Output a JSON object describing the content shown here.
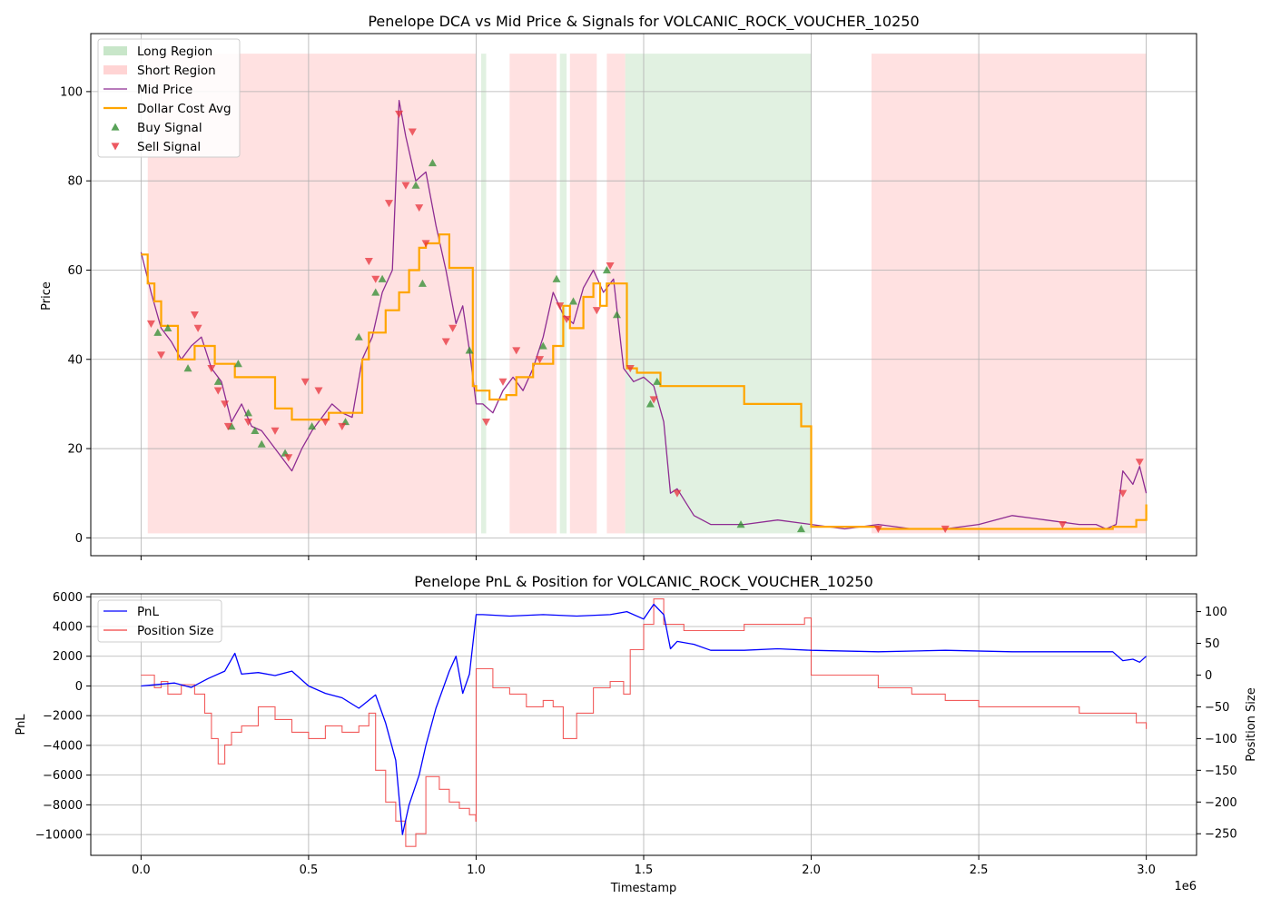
{
  "chart_data": [
    {
      "type": "line",
      "title": "Penelope DCA vs Mid Price & Signals for VOLCANIC_ROCK_VOUCHER_10250",
      "xlabel": "",
      "ylabel": "Price",
      "xlim": [
        -150000,
        3150000
      ],
      "ylim": [
        -4,
        113
      ],
      "x_ticks": [
        0,
        500000,
        1000000,
        1500000,
        2000000,
        2500000,
        3000000
      ],
      "y_ticks": [
        0,
        20,
        40,
        60,
        80,
        100
      ],
      "y_tick_labels": [
        "0",
        "20",
        "40",
        "60",
        "80",
        "100"
      ],
      "grid": true,
      "legend_position": "upper-left",
      "legend": [
        {
          "label": "Long Region",
          "kind": "patch",
          "color": "#c8e6c9"
        },
        {
          "label": "Short Region",
          "kind": "patch",
          "color": "#ffd4d4"
        },
        {
          "label": "Mid Price",
          "kind": "line",
          "color": "#8e2c92"
        },
        {
          "label": "Dollar Cost Avg",
          "kind": "line",
          "color": "#ffa500"
        },
        {
          "label": "Buy Signal",
          "kind": "triangle-up",
          "color": "#2e8b2e"
        },
        {
          "label": "Sell Signal",
          "kind": "triangle-down",
          "color": "#e8303a"
        }
      ],
      "regions": {
        "y_range": [
          1,
          108.5
        ],
        "short": [
          [
            20000,
            1000000
          ],
          [
            1100000,
            1240000
          ],
          [
            1280000,
            1360000
          ],
          [
            1390000,
            1445000
          ],
          [
            2180000,
            3000000
          ]
        ],
        "long": [
          [
            1015000,
            1030000
          ],
          [
            1250000,
            1270000
          ],
          [
            1445000,
            2000000
          ]
        ]
      },
      "mid_price": {
        "x": [
          0,
          30000,
          60000,
          90000,
          120000,
          150000,
          180000,
          210000,
          240000,
          270000,
          300000,
          330000,
          360000,
          390000,
          420000,
          450000,
          480000,
          510000,
          540000,
          570000,
          600000,
          630000,
          660000,
          690000,
          720000,
          750000,
          770000,
          790000,
          820000,
          850000,
          880000,
          910000,
          940000,
          960000,
          980000,
          1000000,
          1020000,
          1050000,
          1080000,
          1110000,
          1140000,
          1170000,
          1200000,
          1230000,
          1260000,
          1290000,
          1320000,
          1350000,
          1380000,
          1410000,
          1440000,
          1470000,
          1500000,
          1530000,
          1560000,
          1580000,
          1600000,
          1650000,
          1700000,
          1800000,
          1900000,
          2000000,
          2100000,
          2200000,
          2300000,
          2400000,
          2500000,
          2600000,
          2700000,
          2800000,
          2850000,
          2880000,
          2910000,
          2930000,
          2960000,
          2980000,
          3000000
        ],
        "y": [
          64,
          55,
          47,
          44,
          40,
          43,
          45,
          38,
          35,
          26,
          30,
          25,
          24,
          21,
          18,
          15,
          20,
          24,
          27,
          30,
          28,
          27,
          40,
          45,
          55,
          60,
          98,
          90,
          80,
          82,
          70,
          60,
          48,
          52,
          42,
          30,
          30,
          28,
          33,
          36,
          33,
          38,
          45,
          55,
          50,
          48,
          56,
          60,
          55,
          58,
          38,
          35,
          36,
          34,
          26,
          10,
          11,
          5,
          3,
          3,
          4,
          3,
          2,
          3,
          2,
          2,
          3,
          5,
          4,
          3,
          3,
          2,
          3,
          15,
          12,
          16,
          10
        ]
      },
      "dollar_cost_avg": {
        "x": [
          0,
          20000,
          40000,
          60000,
          110000,
          160000,
          220000,
          280000,
          400000,
          450000,
          560000,
          660000,
          680000,
          730000,
          770000,
          800000,
          830000,
          850000,
          890000,
          920000,
          990000,
          1000000,
          1040000,
          1090000,
          1120000,
          1170000,
          1230000,
          1260000,
          1280000,
          1320000,
          1350000,
          1370000,
          1390000,
          1450000,
          1480000,
          1550000,
          1800000,
          1970000,
          2000000,
          2200000,
          2900000,
          2970000,
          3000000
        ],
        "y": [
          63.5,
          57,
          53,
          47.5,
          40,
          43,
          39,
          36,
          29,
          26.5,
          28,
          40,
          46,
          51,
          55,
          60,
          65,
          66,
          68,
          60.5,
          34,
          33,
          31,
          32,
          36,
          39,
          43,
          52,
          47,
          54,
          57,
          52,
          57,
          38,
          37,
          34,
          30,
          25,
          2.5,
          2,
          2.5,
          4,
          7.5
        ]
      },
      "buy_signals": {
        "x": [
          50000,
          80000,
          140000,
          230000,
          270000,
          290000,
          320000,
          340000,
          360000,
          430000,
          510000,
          610000,
          650000,
          700000,
          720000,
          820000,
          840000,
          870000,
          980000,
          1200000,
          1240000,
          1290000,
          1390000,
          1420000,
          1520000,
          1540000,
          1790000,
          1970000
        ],
        "y": [
          46,
          47,
          38,
          35,
          25,
          39,
          28,
          24,
          21,
          19,
          25,
          26,
          45,
          55,
          58,
          79,
          57,
          84,
          42,
          43,
          58,
          53,
          60,
          50,
          30,
          35,
          3,
          2
        ]
      },
      "sell_signals": {
        "x": [
          30000,
          60000,
          160000,
          170000,
          210000,
          230000,
          250000,
          260000,
          320000,
          400000,
          440000,
          490000,
          530000,
          550000,
          600000,
          680000,
          700000,
          740000,
          770000,
          790000,
          810000,
          830000,
          850000,
          910000,
          930000,
          1030000,
          1080000,
          1120000,
          1190000,
          1250000,
          1270000,
          1360000,
          1400000,
          1460000,
          1530000,
          1600000,
          2200000,
          2400000,
          2750000,
          2930000,
          2980000
        ],
        "y": [
          48,
          41,
          50,
          47,
          38,
          33,
          30,
          25,
          26,
          24,
          18,
          35,
          33,
          26,
          25,
          62,
          58,
          75,
          95,
          79,
          91,
          74,
          66,
          44,
          47,
          26,
          35,
          42,
          40,
          52,
          49,
          51,
          61,
          38,
          31,
          10,
          2,
          2,
          3,
          10,
          17
        ]
      },
      "colors": {
        "mid_price": "#8e2c92",
        "dca": "#ffa500",
        "buy": "#2e8b2e",
        "sell": "#e8303a",
        "long_region": "#c8e6c9",
        "short_region": "#ffd4d4"
      }
    },
    {
      "type": "line",
      "title": "Penelope PnL & Position for VOLCANIC_ROCK_VOUCHER_10250",
      "xlabel": "Timestamp",
      "x_offset_label": "1e6",
      "xlim": [
        -150000,
        3150000
      ],
      "x_ticks": [
        0,
        500000,
        1000000,
        1500000,
        2000000,
        2500000,
        3000000
      ],
      "x_tick_labels": [
        "0.0",
        "0.5",
        "1.0",
        "1.5",
        "2.0",
        "2.5",
        "3.0"
      ],
      "grid": true,
      "legend_position": "upper-left",
      "legend": [
        {
          "label": "PnL",
          "kind": "line",
          "color": "#0000ff"
        },
        {
          "label": "Position Size",
          "kind": "line",
          "color": "#f04040"
        }
      ],
      "left_axis": {
        "label": "PnL",
        "color": "#0000ff",
        "ylim": [
          -11400,
          6200
        ],
        "ticks": [
          -10000,
          -8000,
          -6000,
          -4000,
          -2000,
          0,
          2000,
          4000,
          6000
        ],
        "tick_labels": [
          "−10000",
          "−8000",
          "−6000",
          "−4000",
          "−2000",
          "0",
          "2000",
          "4000",
          "6000"
        ]
      },
      "right_axis": {
        "label": "Position Size",
        "color": "#ff0000",
        "ylim": [
          -284,
          128
        ],
        "ticks": [
          -250,
          -200,
          -150,
          -100,
          -50,
          0,
          50,
          100
        ],
        "tick_labels": [
          "−250",
          "−200",
          "−150",
          "−100",
          "−50",
          "0",
          "50",
          "100"
        ]
      },
      "series": [
        {
          "name": "PnL",
          "axis": "left",
          "color": "#0000ff",
          "x": [
            0,
            50000,
            100000,
            150000,
            200000,
            250000,
            280000,
            300000,
            350000,
            400000,
            450000,
            500000,
            550000,
            600000,
            650000,
            700000,
            730000,
            760000,
            780000,
            800000,
            830000,
            850000,
            880000,
            920000,
            940000,
            960000,
            980000,
            1000000,
            1020000,
            1100000,
            1200000,
            1300000,
            1400000,
            1450000,
            1500000,
            1530000,
            1560000,
            1580000,
            1600000,
            1650000,
            1700000,
            1800000,
            1900000,
            2000000,
            2200000,
            2400000,
            2600000,
            2800000,
            2900000,
            2930000,
            2960000,
            2980000,
            3000000
          ],
          "y": [
            0,
            100,
            200,
            -100,
            500,
            1000,
            2200,
            800,
            900,
            700,
            1000,
            0,
            -500,
            -800,
            -1500,
            -600,
            -2500,
            -5000,
            -10000,
            -8000,
            -6000,
            -4000,
            -1500,
            1000,
            2000,
            -500,
            800,
            4800,
            4800,
            4700,
            4800,
            4700,
            4800,
            5000,
            4500,
            5500,
            4800,
            2500,
            3000,
            2800,
            2400,
            2400,
            2500,
            2400,
            2300,
            2400,
            2300,
            2300,
            2300,
            1700,
            1800,
            1600,
            2000
          ]
        },
        {
          "name": "Position Size",
          "axis": "right",
          "color": "#f04040",
          "x": [
            0,
            20000,
            40000,
            60000,
            80000,
            120000,
            160000,
            190000,
            210000,
            230000,
            250000,
            270000,
            300000,
            350000,
            400000,
            450000,
            500000,
            550000,
            600000,
            650000,
            680000,
            700000,
            730000,
            760000,
            790000,
            820000,
            850000,
            890000,
            920000,
            950000,
            980000,
            999000,
            1000000,
            1020000,
            1050000,
            1100000,
            1150000,
            1200000,
            1230000,
            1260000,
            1300000,
            1350000,
            1400000,
            1440000,
            1460000,
            1500000,
            1530000,
            1560000,
            1620000,
            1700000,
            1800000,
            1980000,
            2000000,
            2100000,
            2200000,
            2300000,
            2400000,
            2500000,
            2600000,
            2700000,
            2800000,
            2850000,
            2900000,
            2940000,
            2970000,
            3000000
          ],
          "y": [
            0,
            0,
            -20,
            -10,
            -30,
            -15,
            -30,
            -60,
            -100,
            -140,
            -110,
            -90,
            -80,
            -50,
            -70,
            -90,
            -100,
            -80,
            -90,
            -80,
            -60,
            -150,
            -200,
            -230,
            -270,
            -250,
            -160,
            -180,
            -200,
            -210,
            -220,
            -230,
            10,
            10,
            -20,
            -30,
            -50,
            -40,
            -50,
            -100,
            -60,
            -20,
            -10,
            -30,
            40,
            80,
            120,
            80,
            70,
            70,
            80,
            90,
            0,
            0,
            -20,
            -30,
            -40,
            -50,
            -50,
            -50,
            -60,
            -60,
            -60,
            -60,
            -75,
            -85
          ]
        }
      ]
    }
  ]
}
